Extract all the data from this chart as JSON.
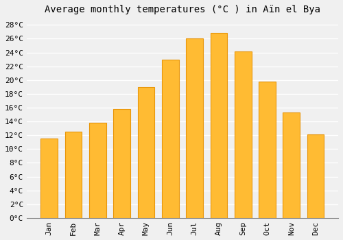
{
  "title": "Average monthly temperatures (°C ) in Aïn el Bya",
  "months": [
    "Jan",
    "Feb",
    "Mar",
    "Apr",
    "May",
    "Jun",
    "Jul",
    "Aug",
    "Sep",
    "Oct",
    "Nov",
    "Dec"
  ],
  "values": [
    11.5,
    12.5,
    13.8,
    15.8,
    19.0,
    23.0,
    26.0,
    26.8,
    24.2,
    19.8,
    15.3,
    12.1
  ],
  "bar_color": "#FFBB33",
  "bar_edge_color": "#E8960A",
  "background_color": "#F0F0F0",
  "grid_color": "#FFFFFF",
  "ylim": [
    0,
    29
  ],
  "yticks": [
    0,
    2,
    4,
    6,
    8,
    10,
    12,
    14,
    16,
    18,
    20,
    22,
    24,
    26,
    28
  ],
  "ylabel_suffix": "°C",
  "title_fontsize": 10,
  "tick_fontsize": 8,
  "font_family": "monospace"
}
